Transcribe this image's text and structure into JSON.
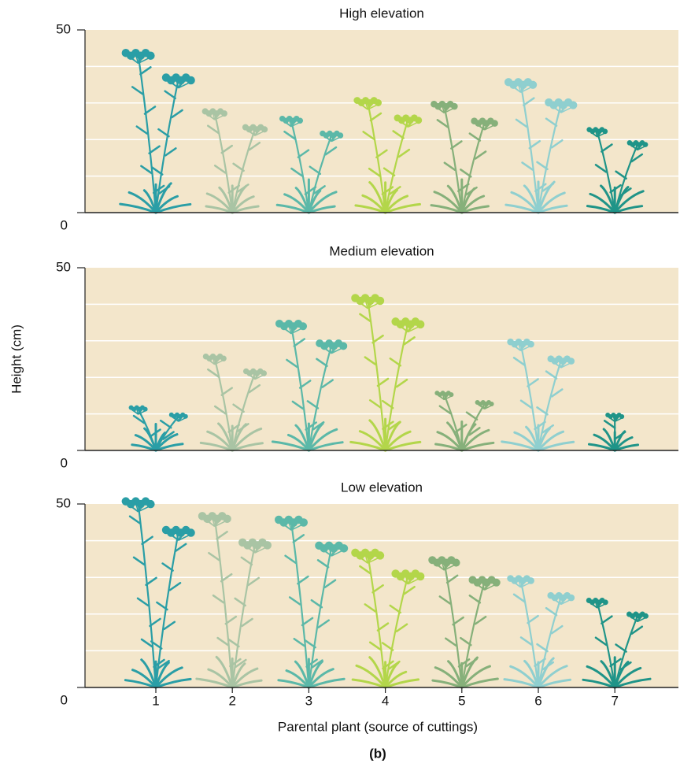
{
  "y_label": "Height (cm)",
  "x_label": "Parental plant (source of cuttings)",
  "caption": "(b)",
  "chart_data": [
    {
      "type": "plant",
      "title": "High elevation",
      "values": [
        45,
        29,
        27,
        32,
        31,
        37,
        24
      ],
      "colors": [
        "#2a9ea6",
        "#a9c4a4",
        "#5bb8a8",
        "#b3d64a",
        "#86b07a",
        "#8fcfcf",
        "#1f9488"
      ],
      "ylim": [
        0,
        50
      ],
      "yticks": [
        0,
        50
      ],
      "ygrid": [
        10,
        20,
        30,
        40
      ]
    },
    {
      "type": "plant",
      "title": "Medium elevation",
      "values": [
        13,
        27,
        36,
        43,
        17,
        31,
        11
      ],
      "colors": [
        "#2a9ea6",
        "#a9c4a4",
        "#5bb8a8",
        "#b3d64a",
        "#86b07a",
        "#8fcfcf",
        "#1f9488"
      ],
      "ylim": [
        0,
        50
      ],
      "yticks": [
        0,
        50
      ],
      "ygrid": [
        10,
        20,
        30,
        40
      ]
    },
    {
      "type": "plant",
      "title": "Low elevation",
      "categories": [
        "1",
        "2",
        "3",
        "4",
        "5",
        "6",
        "7"
      ],
      "values": [
        52,
        48,
        47,
        38,
        36,
        31,
        25
      ],
      "colors": [
        "#2a9ea6",
        "#a9c4a4",
        "#5bb8a8",
        "#b3d64a",
        "#86b07a",
        "#8fcfcf",
        "#1f9488"
      ],
      "ylim": [
        0,
        50
      ],
      "yticks": [
        0,
        50
      ],
      "ygrid": [
        10,
        20,
        30,
        40
      ]
    }
  ]
}
